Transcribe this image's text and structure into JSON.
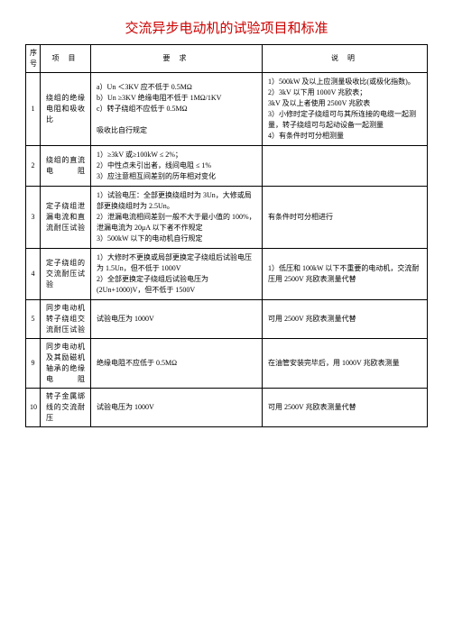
{
  "title": "交流异步电动机的试验项目和标准",
  "headers": {
    "num": "序号",
    "item": "项  目",
    "req": "要    求",
    "desc": "说    明"
  },
  "rows": [
    {
      "num": "1",
      "item": "绕组的绝缘电阻和吸收比",
      "req": "a）Un ＜3KV 应不低于 0.5MΩ\nb）Un ≥3KV 绝缘电阻不低于 1MΩ/1KV\nc）转子绕组不应低于 0.5MΩ\n\n吸收比自行规定",
      "desc": "1）500kW 及以上应测量吸收比(或极化指数)。\n2）3kV 以下用 1000V 兆欧表；\n3kV 及以上者使用 2500V 兆欧表\n3）小修时定子绕组可与其所连接的电缆一起测量，转子绕组可与起动设备一起测量\n4）有条件时可分相测量"
    },
    {
      "num": "2",
      "item": "绕组的直流电阻",
      "req": "1）≥3kV 或≥100kW ≤ 2%；\n2）中性点未引出者，线间电阻 ≤ 1%\n3）应注意相互间差别的历年相对变化",
      "desc": ""
    },
    {
      "num": "3",
      "item": "定子绕组泄漏电流和直流耐压试验",
      "req": "1）试验电压：全部更换绕组时为 3Un，大修或局部更换绕组时为 2.5Un。\n2）泄漏电流相间差别一般不大于最小值的 100%，泄漏电流为 20μA 以下者不作规定\n3）500kW 以下的电动机自行规定",
      "desc": "有条件时可分相进行"
    },
    {
      "num": "4",
      "item": "定子绕组的交流耐压试验",
      "req": "1）大修时不更换或局部更换定子绕组后试验电压为 1.5Un，但不低于 1000V\n2）全部更换定子绕组后试验电压为 (2Un+1000)V，但不低于 1500V",
      "desc": "1）低压和 100kW 以下不重要的电动机，交流耐压用 2500V 兆欧表测量代替"
    },
    {
      "num": "5",
      "item": "同步电动机转子绕组交流耐压试验",
      "req": "试验电压为 1000V",
      "desc": "可用 2500V 兆欧表测量代替"
    },
    {
      "num": "9",
      "item": "同步电动机及其励磁机轴承的绝缘电阻",
      "req": "绝缘电阻不应低于 0.5MΩ",
      "desc": "在油管安装完毕后，用 1000V 兆欧表测量"
    },
    {
      "num": "10",
      "item": "转子金属绑线的交流耐压",
      "req": "试验电压为 1000V",
      "desc": "可用 2500V 兆欧表测量代替"
    }
  ]
}
